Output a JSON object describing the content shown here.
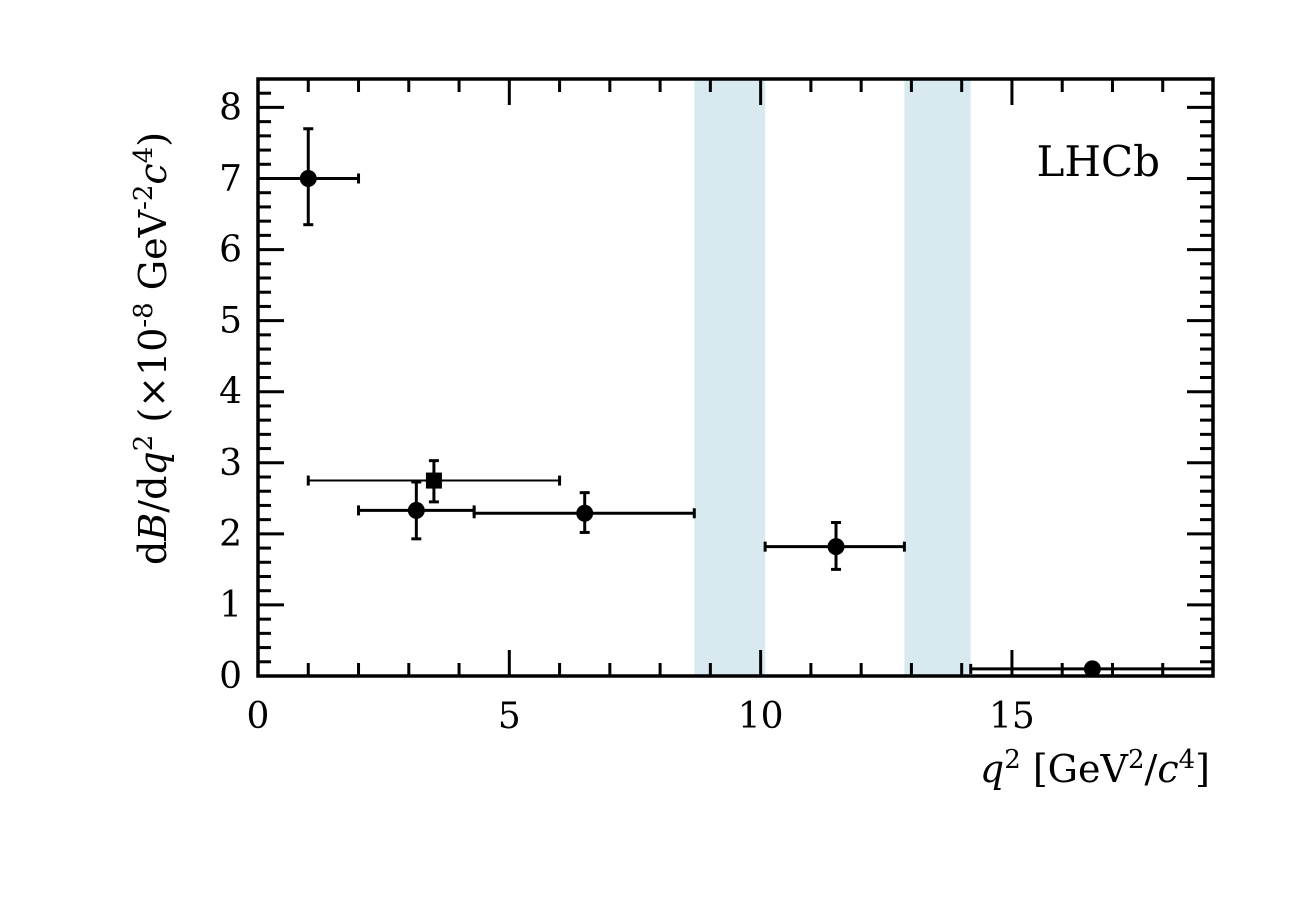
{
  "chart_data": {
    "type": "scatter",
    "title": "",
    "annotation": "LHCb",
    "xlabel": {
      "var": "q",
      "sup": "2",
      "unit_open": " [GeV",
      "unit_sup": "2",
      "unit_mid": "/",
      "unit_var": "c",
      "unit_sup2": "4",
      "unit_close": "]"
    },
    "ylabel": {
      "d1": "d",
      "B": "B",
      "slash_d": "/d",
      "q": "q",
      "q_sup": "2",
      "open": " (×10",
      "exp": "-8",
      "gev": " GeV",
      "gev_exp": "-2",
      "c": "c",
      "c_exp": "4",
      "close": ")"
    },
    "xlim": [
      0,
      19
    ],
    "ylim": [
      0,
      8.4
    ],
    "x_ticks": [
      "0",
      "5",
      "10",
      "15"
    ],
    "y_ticks": [
      "0",
      "1",
      "2",
      "3",
      "4",
      "5",
      "6",
      "7",
      "8"
    ],
    "vetoed_regions": [
      [
        8.68,
        10.09
      ],
      [
        12.86,
        14.18
      ]
    ],
    "series": [
      {
        "marker": "circle",
        "points": [
          {
            "x": 1.0,
            "xlo": 0.0,
            "xhi": 2.0,
            "y": 7.0,
            "ylo": 6.35,
            "yhi": 7.7
          },
          {
            "x": 3.15,
            "xlo": 2.0,
            "xhi": 4.3,
            "y": 2.33,
            "ylo": 1.93,
            "yhi": 2.73
          },
          {
            "x": 6.5,
            "xlo": 4.3,
            "xhi": 8.68,
            "y": 2.29,
            "ylo": 2.02,
            "yhi": 2.58
          },
          {
            "x": 11.5,
            "xlo": 10.09,
            "xhi": 12.86,
            "y": 1.82,
            "ylo": 1.5,
            "yhi": 2.16
          },
          {
            "x": 16.6,
            "xlo": 14.18,
            "xhi": 19.0,
            "y": 0.1,
            "ylo": 0.04,
            "yhi": 0.16
          }
        ]
      },
      {
        "marker": "square",
        "points": [
          {
            "x": 3.5,
            "xlo": 1.0,
            "xhi": 6.0,
            "y": 2.75,
            "ylo": 2.45,
            "yhi": 3.03
          }
        ]
      }
    ]
  }
}
